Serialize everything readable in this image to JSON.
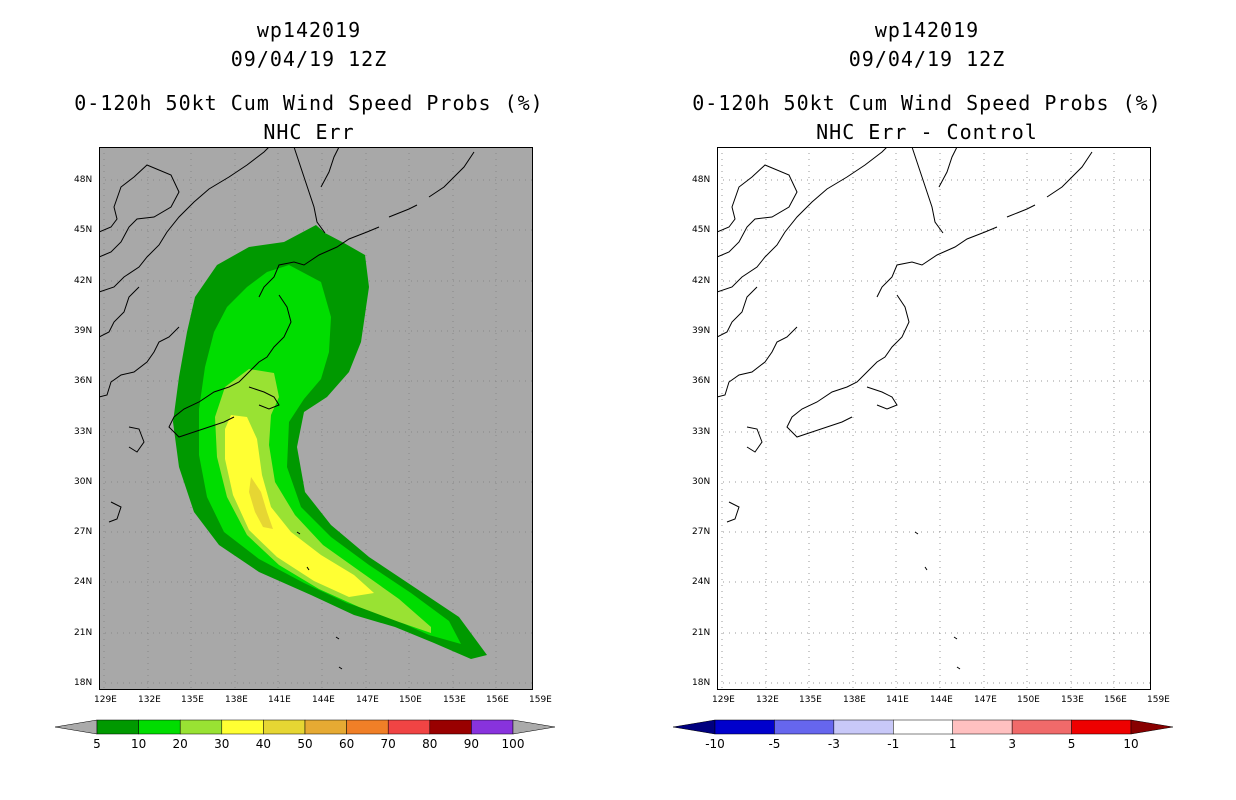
{
  "left": {
    "title_line1": "wp142019",
    "title_line2": "09/04/19 12Z",
    "title_line3": "0-120h 50kt Cum Wind Speed Probs (%)",
    "title_line4": "NHC Err",
    "legend": {
      "colors": [
        "#009900",
        "#00dd00",
        "#99e233",
        "#ffff33",
        "#e6d633",
        "#e6aa33",
        "#f07f27",
        "#f04444",
        "#990000",
        "#8833dd"
      ],
      "end_colors": [
        "#aaaaaa",
        "#aaaaaa"
      ],
      "labels": [
        "5",
        "10",
        "20",
        "30",
        "40",
        "50",
        "60",
        "70",
        "80",
        "90",
        "100"
      ]
    }
  },
  "right": {
    "title_line1": "wp142019",
    "title_line2": "09/04/19 12Z",
    "title_line3": "0-120h 50kt Cum Wind Speed Probs (%)",
    "title_line4": "NHC Err - Control",
    "legend": {
      "colors": [
        "#0000cc",
        "#6666ee",
        "#c8c8f8",
        "#ffffff",
        "#ffc0c0",
        "#f06a6a",
        "#ee0000"
      ],
      "end_colors": [
        "#00007f",
        "#880000"
      ],
      "labels": [
        "-10",
        "-5",
        "-3",
        "-1",
        "1",
        "3",
        "5",
        "10"
      ]
    }
  },
  "axes": {
    "lat_labels": [
      "48N",
      "45N",
      "42N",
      "39N",
      "36N",
      "33N",
      "30N",
      "27N",
      "24N",
      "21N",
      "18N"
    ],
    "lon_labels": [
      "129E",
      "132E",
      "135E",
      "138E",
      "141E",
      "144E",
      "147E",
      "150E",
      "153E",
      "156E",
      "159E"
    ]
  }
}
